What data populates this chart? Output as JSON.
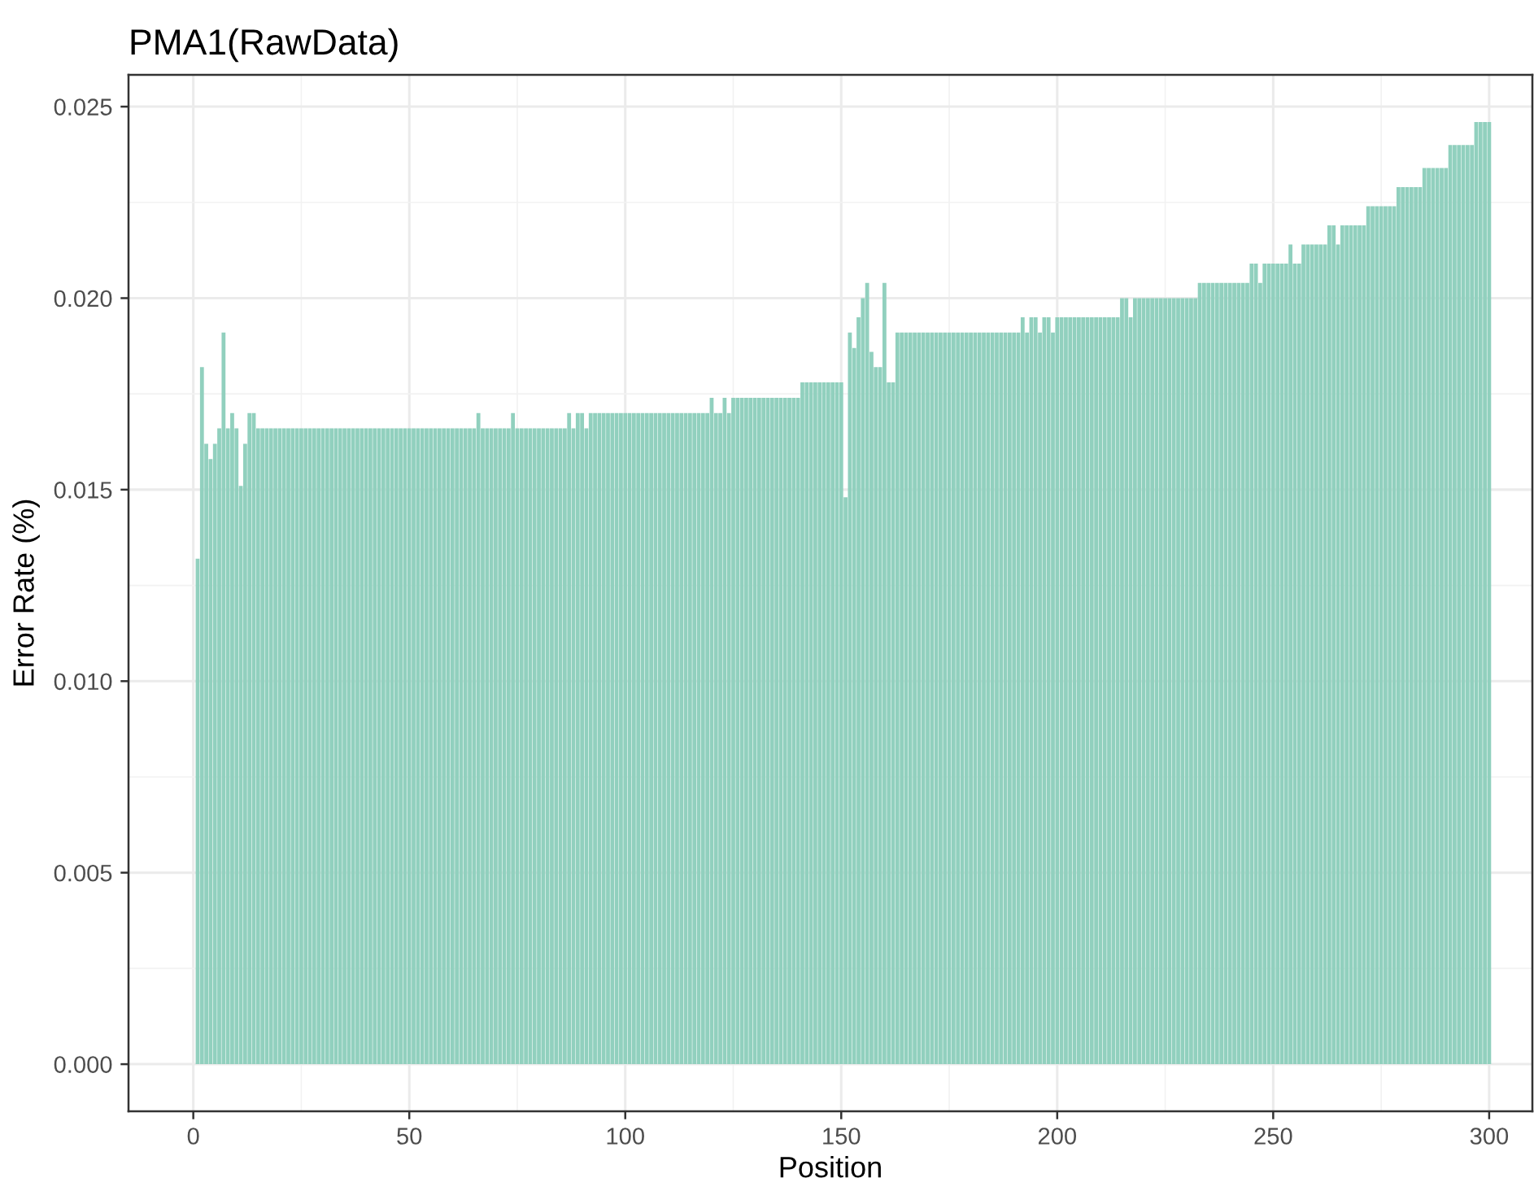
{
  "chart_data": {
    "type": "bar",
    "title": "PMA1(RawData)",
    "xlabel": "Position",
    "ylabel": "Error Rate (%)",
    "color": "#91d0be",
    "x": [
      1,
      2,
      3,
      4,
      5,
      6,
      7,
      8,
      9,
      10,
      11,
      12,
      13,
      14,
      15,
      16,
      17,
      18,
      19,
      20,
      21,
      22,
      23,
      24,
      25,
      26,
      27,
      28,
      29,
      30,
      31,
      32,
      33,
      34,
      35,
      36,
      37,
      38,
      39,
      40,
      41,
      42,
      43,
      44,
      45,
      46,
      47,
      48,
      49,
      50,
      51,
      52,
      53,
      54,
      55,
      56,
      57,
      58,
      59,
      60,
      61,
      62,
      63,
      64,
      65,
      66,
      67,
      68,
      69,
      70,
      71,
      72,
      73,
      74,
      75,
      76,
      77,
      78,
      79,
      80,
      81,
      82,
      83,
      84,
      85,
      86,
      87,
      88,
      89,
      90,
      91,
      92,
      93,
      94,
      95,
      96,
      97,
      98,
      99,
      100,
      101,
      102,
      103,
      104,
      105,
      106,
      107,
      108,
      109,
      110,
      111,
      112,
      113,
      114,
      115,
      116,
      117,
      118,
      119,
      120,
      121,
      122,
      123,
      124,
      125,
      126,
      127,
      128,
      129,
      130,
      131,
      132,
      133,
      134,
      135,
      136,
      137,
      138,
      139,
      140,
      141,
      142,
      143,
      144,
      145,
      146,
      147,
      148,
      149,
      150,
      151,
      152,
      153,
      154,
      155,
      156,
      157,
      158,
      159,
      160,
      161,
      162,
      163,
      164,
      165,
      166,
      167,
      168,
      169,
      170,
      171,
      172,
      173,
      174,
      175,
      176,
      177,
      178,
      179,
      180,
      181,
      182,
      183,
      184,
      185,
      186,
      187,
      188,
      189,
      190,
      191,
      192,
      193,
      194,
      195,
      196,
      197,
      198,
      199,
      200,
      201,
      202,
      203,
      204,
      205,
      206,
      207,
      208,
      209,
      210,
      211,
      212,
      213,
      214,
      215,
      216,
      217,
      218,
      219,
      220,
      221,
      222,
      223,
      224,
      225,
      226,
      227,
      228,
      229,
      230,
      231,
      232,
      233,
      234,
      235,
      236,
      237,
      238,
      239,
      240,
      241,
      242,
      243,
      244,
      245,
      246,
      247,
      248,
      249,
      250,
      251,
      252,
      253,
      254,
      255,
      256,
      257,
      258,
      259,
      260,
      261,
      262,
      263,
      264,
      265,
      266,
      267,
      268,
      269,
      270,
      271,
      272,
      273,
      274,
      275,
      276,
      277,
      278,
      279,
      280,
      281,
      282,
      283,
      284,
      285,
      286,
      287,
      288,
      289,
      290,
      291,
      292,
      293,
      294,
      295,
      296,
      297,
      298,
      299,
      300
    ],
    "values": [
      0.0132,
      0.0182,
      0.0162,
      0.0158,
      0.0162,
      0.0166,
      0.0191,
      0.0166,
      0.017,
      0.0166,
      0.0151,
      0.0162,
      0.017,
      0.017,
      0.0166,
      0.0166,
      0.0166,
      0.0166,
      0.0166,
      0.0166,
      0.0166,
      0.0166,
      0.0166,
      0.0166,
      0.0166,
      0.0166,
      0.0166,
      0.0166,
      0.0166,
      0.0166,
      0.0166,
      0.0166,
      0.0166,
      0.0166,
      0.0166,
      0.0166,
      0.0166,
      0.0166,
      0.0166,
      0.0166,
      0.0166,
      0.0166,
      0.0166,
      0.0166,
      0.0166,
      0.0166,
      0.0166,
      0.0166,
      0.0166,
      0.0166,
      0.0166,
      0.0166,
      0.0166,
      0.0166,
      0.0166,
      0.0166,
      0.0166,
      0.0166,
      0.0166,
      0.0166,
      0.0166,
      0.0166,
      0.0166,
      0.0166,
      0.0166,
      0.017,
      0.0166,
      0.0166,
      0.0166,
      0.0166,
      0.0166,
      0.0166,
      0.0166,
      0.017,
      0.0166,
      0.0166,
      0.0166,
      0.0166,
      0.0166,
      0.0166,
      0.0166,
      0.0166,
      0.0166,
      0.0166,
      0.0166,
      0.0166,
      0.017,
      0.0166,
      0.017,
      0.017,
      0.0166,
      0.017,
      0.017,
      0.017,
      0.017,
      0.017,
      0.017,
      0.017,
      0.017,
      0.017,
      0.017,
      0.017,
      0.017,
      0.017,
      0.017,
      0.017,
      0.017,
      0.017,
      0.017,
      0.017,
      0.017,
      0.017,
      0.017,
      0.017,
      0.017,
      0.017,
      0.017,
      0.017,
      0.017,
      0.0174,
      0.017,
      0.017,
      0.0174,
      0.017,
      0.0174,
      0.0174,
      0.0174,
      0.0174,
      0.0174,
      0.0174,
      0.0174,
      0.0174,
      0.0174,
      0.0174,
      0.0174,
      0.0174,
      0.0174,
      0.0174,
      0.0174,
      0.0174,
      0.0178,
      0.0178,
      0.0178,
      0.0178,
      0.0178,
      0.0178,
      0.0178,
      0.0178,
      0.0178,
      0.0178,
      0.0148,
      0.0191,
      0.0187,
      0.0195,
      0.02,
      0.0204,
      0.0186,
      0.0182,
      0.0182,
      0.0204,
      0.0178,
      0.0178,
      0.0191,
      0.0191,
      0.0191,
      0.0191,
      0.0191,
      0.0191,
      0.0191,
      0.0191,
      0.0191,
      0.0191,
      0.0191,
      0.0191,
      0.0191,
      0.0191,
      0.0191,
      0.0191,
      0.0191,
      0.0191,
      0.0191,
      0.0191,
      0.0191,
      0.0191,
      0.0191,
      0.0191,
      0.0191,
      0.0191,
      0.0191,
      0.0191,
      0.0191,
      0.0195,
      0.0191,
      0.0195,
      0.0195,
      0.0191,
      0.0195,
      0.0195,
      0.0191,
      0.0195,
      0.0195,
      0.0195,
      0.0195,
      0.0195,
      0.0195,
      0.0195,
      0.0195,
      0.0195,
      0.0195,
      0.0195,
      0.0195,
      0.0195,
      0.0195,
      0.0195,
      0.02,
      0.02,
      0.0195,
      0.02,
      0.02,
      0.02,
      0.02,
      0.02,
      0.02,
      0.02,
      0.02,
      0.02,
      0.02,
      0.02,
      0.02,
      0.02,
      0.02,
      0.02,
      0.0204,
      0.0204,
      0.0204,
      0.0204,
      0.0204,
      0.0204,
      0.0204,
      0.0204,
      0.0204,
      0.0204,
      0.0204,
      0.0204,
      0.0209,
      0.0209,
      0.0204,
      0.0209,
      0.0209,
      0.0209,
      0.0209,
      0.0209,
      0.0209,
      0.0214,
      0.0209,
      0.0209,
      0.0214,
      0.0214,
      0.0214,
      0.0214,
      0.0214,
      0.0214,
      0.0219,
      0.0219,
      0.0214,
      0.0219,
      0.0219,
      0.0219,
      0.0219,
      0.0219,
      0.0219,
      0.0224,
      0.0224,
      0.0224,
      0.0224,
      0.0224,
      0.0224,
      0.0224,
      0.0229,
      0.0229,
      0.0229,
      0.0229,
      0.0229,
      0.0229,
      0.0234,
      0.0234,
      0.0234,
      0.0234,
      0.0234,
      0.0234,
      0.024,
      0.024,
      0.024,
      0.024,
      0.024,
      0.024,
      0.0246,
      0.0246,
      0.0246,
      0.0246
    ],
    "xlim": [
      -15,
      310
    ],
    "xticks": [
      0,
      50,
      100,
      150,
      200,
      250,
      300
    ],
    "ylim": [
      -0.00123,
      0.02583
    ],
    "yticks": [
      {
        "value": 0,
        "label": "0.000"
      },
      {
        "value": 0.005,
        "label": "0.005"
      },
      {
        "value": 0.01,
        "label": "0.010"
      },
      {
        "value": 0.015,
        "label": "0.015"
      },
      {
        "value": 0.02,
        "label": "0.020"
      },
      {
        "value": 0.025,
        "label": "0.025"
      }
    ],
    "grid": true
  }
}
